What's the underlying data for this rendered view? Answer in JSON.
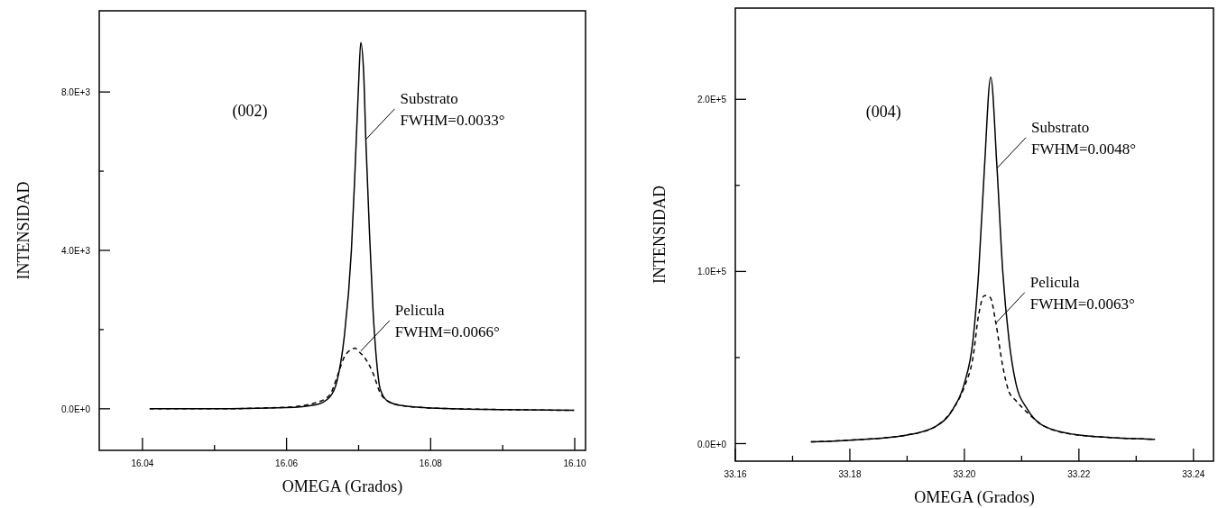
{
  "chart_data": [
    {
      "type": "line",
      "xlabel": "OMEGA (Grados)",
      "ylabel": "INTENSIDAD",
      "xlim": [
        16.034,
        16.1015
      ],
      "ylim": [
        -1050,
        10050
      ],
      "xticks": [
        {
          "value": 16.04,
          "label": "16.04"
        },
        {
          "value": 16.05,
          "label": null
        },
        {
          "value": 16.06,
          "label": "16.06"
        },
        {
          "value": 16.07,
          "label": null
        },
        {
          "value": 16.08,
          "label": "16.08"
        },
        {
          "value": 16.09,
          "label": null
        },
        {
          "value": 16.1,
          "label": "16.10"
        }
      ],
      "yticks": [
        {
          "value": 0,
          "label": "0.0E+0"
        },
        {
          "value": 2000,
          "label": null
        },
        {
          "value": 4000,
          "label": "4.0E+3"
        },
        {
          "value": 6000,
          "label": null
        },
        {
          "value": 8000,
          "label": "8.0E+3"
        }
      ],
      "series": [
        {
          "color": "#000000",
          "line_style": "solid",
          "x": [
            16.041,
            16.05,
            16.06,
            16.064,
            16.066,
            16.067,
            16.068,
            16.069,
            16.0695,
            16.07,
            16.0703,
            16.0707,
            16.071,
            16.0715,
            16.072,
            16.0725,
            16.073,
            16.074,
            16.076,
            16.08,
            16.09,
            16.0999
          ],
          "values": [
            0,
            0,
            30,
            100,
            300,
            700,
            1800,
            4000,
            6000,
            8200,
            9250,
            8500,
            6800,
            4500,
            2500,
            1200,
            500,
            200,
            80,
            20,
            -20,
            -40
          ]
        },
        {
          "color": "#000000",
          "line_style": "dashed",
          "x": [
            16.041,
            16.05,
            16.06,
            16.064,
            16.066,
            16.067,
            16.068,
            16.069,
            16.0695,
            16.07,
            16.071,
            16.072,
            16.073,
            16.074,
            16.076,
            16.08,
            16.09,
            16.0999
          ],
          "values": [
            0,
            0,
            40,
            150,
            350,
            800,
            1300,
            1500,
            1530,
            1450,
            1250,
            900,
            400,
            200,
            80,
            20,
            -20,
            -40
          ]
        }
      ],
      "annotations": [
        "(002)",
        {
          "text": "Substrato\nFWHM=0.0033°",
          "x": 16.071,
          "y": 6800
        },
        {
          "text": "Pelicula\nFWHM=0.0066°",
          "x": 16.0703,
          "y": 1455
        }
      ]
    },
    {
      "type": "line",
      "xlabel": "OMEGA (Grados)",
      "ylabel": "INTENSIDAD",
      "xlim": [
        33.16,
        33.2435
      ],
      "ylim": [
        -10200,
        253000
      ],
      "xticks": [
        {
          "value": 33.16,
          "label": "33.16"
        },
        {
          "value": 33.17,
          "label": null
        },
        {
          "value": 33.18,
          "label": "33.18"
        },
        {
          "value": 33.19,
          "label": null
        },
        {
          "value": 33.2,
          "label": "33.20"
        },
        {
          "value": 33.21,
          "label": null
        },
        {
          "value": 33.22,
          "label": "33.22"
        },
        {
          "value": 33.23,
          "label": null
        },
        {
          "value": 33.24,
          "label": "33.24"
        }
      ],
      "yticks": [
        {
          "value": 0,
          "label": "0.0E+0"
        },
        {
          "value": 50000,
          "label": null
        },
        {
          "value": 100000,
          "label": "1.0E+5"
        },
        {
          "value": 150000,
          "label": null
        },
        {
          "value": 200000,
          "label": "2.0E+5"
        }
      ],
      "series": [
        {
          "color": "#000000",
          "line_style": "solid",
          "x": [
            33.1732,
            33.18,
            33.19,
            33.195,
            33.198,
            33.2,
            33.2015,
            33.2025,
            33.2035,
            33.2046,
            33.2057,
            33.2067,
            33.2078,
            33.209,
            33.211,
            33.214,
            33.22,
            33.2333
          ],
          "values": [
            1000,
            2000,
            5000,
            10000,
            20000,
            35000,
            60000,
            100000,
            160000,
            212800,
            160000,
            100000,
            60000,
            35000,
            20000,
            10000,
            5000,
            2500
          ]
        },
        {
          "color": "#000000",
          "line_style": "dashed",
          "x": [
            33.1732,
            33.18,
            33.19,
            33.195,
            33.198,
            33.2,
            33.2015,
            33.2025,
            33.2035,
            33.2045,
            33.2055,
            33.2067,
            33.2078,
            33.209,
            33.211,
            33.214,
            33.22,
            33.2333
          ],
          "values": [
            1000,
            2000,
            5000,
            10000,
            20000,
            33000,
            50000,
            75000,
            86000,
            85000,
            70000,
            45000,
            30000,
            25000,
            18000,
            10000,
            5000,
            2500
          ]
        }
      ],
      "annotations": [
        "(004)",
        {
          "text": "Substrato\nFWHM=0.0048°",
          "x": 33.2057,
          "y": 160000
        },
        {
          "text": "Pelicula\nFWHM=0.0063°",
          "x": 33.2055,
          "y": 70000
        }
      ]
    }
  ]
}
